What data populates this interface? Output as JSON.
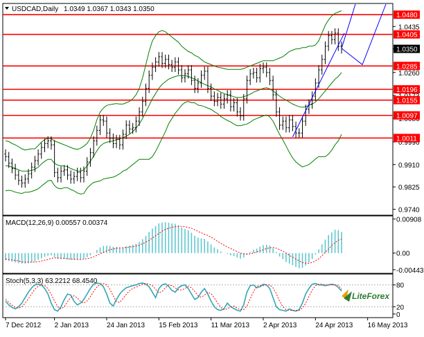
{
  "header": {
    "symbol": "USDCAD,Daily",
    "ohlc": "1.0349 1.0367 1.0343 1.0350"
  },
  "colors": {
    "background": "#ffffff",
    "frame": "#000000",
    "level_line": "#ff0000",
    "level_label_bg": "#ff0000",
    "candle": "#000000",
    "bollinger": "#008000",
    "macd_hist": "#5fc7cf",
    "macd_signal": "#ff0000",
    "stoch_main": "#2fa6b6",
    "stoch_signal": "#ff0000",
    "forecast": "#0000ff",
    "trendline": "#0000ff"
  },
  "watermark": "LiteForex",
  "chart_data": [
    {
      "type": "candlestick",
      "panel": "price",
      "title": "USDCAD,Daily",
      "ylim": [
        0.972,
        1.052
      ],
      "price_ticks": [
        "1.0435",
        "1.0350",
        "1.0260",
        "1.0173",
        "1.0086",
        "0.9996",
        "0.9910",
        "0.9825",
        "0.9740"
      ],
      "current_price": "1.0350",
      "horizontal_levels": [
        {
          "value": 1.048,
          "label": "1.0480"
        },
        {
          "value": 1.0405,
          "label": "1.0405"
        },
        {
          "value": 1.0285,
          "label": "1.0285"
        },
        {
          "value": 1.0196,
          "label": "1.0196"
        },
        {
          "value": 1.0155,
          "label": "1.0155"
        },
        {
          "value": 1.0097,
          "label": "1.0097"
        },
        {
          "value": 1.0011,
          "label": "1.0011"
        }
      ],
      "closes": [
        0.994,
        0.9915,
        0.9895,
        0.987,
        0.985,
        0.984,
        0.9855,
        0.9875,
        0.99,
        0.9925,
        0.995,
        0.9975,
        0.999,
        1.0,
        0.9985,
        0.988,
        0.986,
        0.9885,
        0.989,
        0.987,
        0.9855,
        0.9865,
        0.988,
        0.986,
        0.9885,
        0.992,
        0.9955,
        1.0,
        1.004,
        1.008,
        1.0075,
        1.003,
        1.001,
        0.999,
        1.0005,
        0.9985,
        1.0025,
        1.006,
        1.0045,
        1.005,
        1.0075,
        1.011,
        1.015,
        1.02,
        1.025,
        1.028,
        1.03,
        1.032,
        1.0295,
        1.031,
        1.029,
        1.028,
        1.03,
        1.027,
        1.024,
        1.0255,
        1.027,
        1.023,
        1.02,
        1.022,
        1.025,
        1.0265,
        1.02,
        1.017,
        1.015,
        1.0165,
        1.014,
        1.016,
        1.0175,
        1.013,
        1.0145,
        1.011,
        1.0095,
        1.016,
        1.023,
        1.0255,
        1.026,
        1.024,
        1.0275,
        1.028,
        1.026,
        1.023,
        1.0175,
        1.011,
        1.006,
        1.0075,
        1.005,
        1.008,
        1.0055,
        1.003,
        1.003,
        1.0075,
        1.012,
        1.014,
        1.017,
        1.022,
        1.027,
        1.031,
        1.036,
        1.04,
        1.0385,
        1.041,
        1.036,
        1.035
      ],
      "bollinger_upper": [
        1.0,
        0.9998,
        0.999,
        0.9985,
        0.9978,
        0.997,
        0.9965,
        0.9968,
        0.997,
        0.997,
        0.9982,
        0.9995,
        1.0005,
        1.001,
        1.0008,
        1.0,
        0.9995,
        0.999,
        0.9985,
        0.998,
        0.9975,
        0.997,
        0.9968,
        0.9972,
        0.998,
        0.999,
        1.001,
        1.004,
        1.008,
        1.011,
        1.0125,
        1.0135,
        1.0138,
        1.014,
        1.0142,
        1.014,
        1.014,
        1.0145,
        1.015,
        1.016,
        1.0175,
        1.02,
        1.024,
        1.029,
        1.034,
        1.038,
        1.04,
        1.0415,
        1.042,
        1.0415,
        1.0405,
        1.0395,
        1.0385,
        1.0375,
        1.036,
        1.035,
        1.034,
        1.0335,
        1.0325,
        1.032,
        1.031,
        1.03,
        1.0295,
        1.029,
        1.0285,
        1.028,
        1.0278,
        1.0275,
        1.0272,
        1.0272,
        1.0272,
        1.0272,
        1.0272,
        1.0275,
        1.028,
        1.0285,
        1.029,
        1.0295,
        1.03,
        1.0305,
        1.0305,
        1.0305,
        1.0305,
        1.031,
        1.0315,
        1.032,
        1.033,
        1.034,
        1.0345,
        1.035,
        1.035,
        1.0355,
        1.0355,
        1.036,
        1.036,
        1.0365,
        1.038,
        1.041,
        1.044,
        1.046,
        1.0475,
        1.0485,
        1.049,
        1.0495
      ],
      "bollinger_middle": [
        0.9905,
        0.9905,
        0.99,
        0.9895,
        0.989,
        0.9885,
        0.9885,
        0.9885,
        0.9888,
        0.9892,
        0.99,
        0.9912,
        0.9922,
        0.993,
        0.993,
        0.9915,
        0.9908,
        0.9905,
        0.9905,
        0.9902,
        0.9895,
        0.989,
        0.9885,
        0.9885,
        0.989,
        0.9905,
        0.9922,
        0.9942,
        0.9962,
        0.998,
        0.999,
        0.9995,
        0.9998,
        1.0,
        1.0005,
        1.0008,
        1.0012,
        1.0018,
        1.0025,
        1.0035,
        1.0048,
        1.0065,
        1.0085,
        1.011,
        1.0135,
        1.016,
        1.018,
        1.02,
        1.0215,
        1.0225,
        1.0235,
        1.024,
        1.0245,
        1.0248,
        1.0248,
        1.0248,
        1.0245,
        1.024,
        1.0235,
        1.0228,
        1.0222,
        1.0215,
        1.021,
        1.0205,
        1.0198,
        1.0192,
        1.0185,
        1.018,
        1.0175,
        1.0172,
        1.0168,
        1.0165,
        1.0165,
        1.0168,
        1.0172,
        1.0178,
        1.0185,
        1.019,
        1.0195,
        1.02,
        1.0202,
        1.0198,
        1.019,
        1.018,
        1.017,
        1.0162,
        1.0155,
        1.0148,
        1.014,
        1.0135,
        1.013,
        1.0128,
        1.013,
        1.0135,
        1.014,
        1.0148,
        1.016,
        1.0175,
        1.019,
        1.0205,
        1.022,
        1.0235,
        1.0245,
        1.026
      ],
      "bollinger_lower": [
        0.981,
        0.9812,
        0.981,
        0.9805,
        0.9802,
        0.98,
        0.9805,
        0.9805,
        0.9808,
        0.9812,
        0.9818,
        0.9828,
        0.9838,
        0.9848,
        0.985,
        0.983,
        0.982,
        0.9818,
        0.9822,
        0.9822,
        0.9815,
        0.981,
        0.9802,
        0.9798,
        0.98,
        0.982,
        0.9832,
        0.9842,
        0.9845,
        0.9848,
        0.9855,
        0.9858,
        0.986,
        0.9862,
        0.9868,
        0.9875,
        0.9885,
        0.989,
        0.99,
        0.991,
        0.992,
        0.993,
        0.993,
        0.993,
        0.993,
        0.994,
        0.996,
        0.9985,
        1.001,
        1.0035,
        1.0065,
        1.0085,
        1.0105,
        1.012,
        1.0136,
        1.0146,
        1.015,
        1.0145,
        1.0145,
        1.0136,
        1.0134,
        1.013,
        1.0125,
        1.012,
        1.0111,
        1.0104,
        1.0092,
        1.0085,
        1.0078,
        1.0072,
        1.0064,
        1.0058,
        1.0058,
        1.0061,
        1.0064,
        1.0071,
        1.008,
        1.0085,
        1.009,
        1.0095,
        1.0099,
        1.0091,
        1.0075,
        1.005,
        1.0025,
        1.0004,
        0.998,
        0.9956,
        0.9935,
        0.992,
        0.991,
        0.9901,
        0.9905,
        0.991,
        0.992,
        0.9931,
        0.994,
        0.994,
        0.994,
        0.995,
        0.9965,
        0.9985,
        1.0,
        1.0025
      ]
    },
    {
      "type": "bar",
      "panel": "macd",
      "title": "MACD(12,26,9) 0.00557 0.00374",
      "ylim": [
        -0.0052,
        0.0097
      ],
      "ticks": [
        "0.00908",
        "0.00",
        "-0.00443"
      ],
      "series": [
        {
          "name": "MACD",
          "values": [
            -0.0019,
            -0.0021,
            -0.0023,
            -0.0025,
            -0.0027,
            -0.0028,
            -0.0028,
            -0.0027,
            -0.0025,
            -0.0022,
            -0.0018,
            -0.0014,
            -0.001,
            -0.0007,
            -0.0006,
            -0.0011,
            -0.0015,
            -0.0016,
            -0.0016,
            -0.0017,
            -0.0018,
            -0.0018,
            -0.0017,
            -0.0017,
            -0.0015,
            -0.0011,
            -0.0006,
            0.0001,
            0.0008,
            0.0015,
            0.0019,
            0.002,
            0.0019,
            0.0017,
            0.0016,
            0.0014,
            0.0015,
            0.0018,
            0.002,
            0.0022,
            0.0025,
            0.003,
            0.0037,
            0.0046,
            0.0056,
            0.0065,
            0.0072,
            0.0079,
            0.0081,
            0.0082,
            0.0081,
            0.0079,
            0.0078,
            0.0074,
            0.0068,
            0.0064,
            0.0061,
            0.0054,
            0.0046,
            0.0041,
            0.0039,
            0.0038,
            0.0031,
            0.0023,
            0.0015,
            0.001,
            0.0004,
            0.0,
            -0.0002,
            -0.0006,
            -0.0008,
            -0.0012,
            -0.0015,
            -0.0012,
            -0.0004,
            0.0003,
            0.0009,
            0.0012,
            0.0017,
            0.0021,
            0.0022,
            0.002,
            0.0013,
            0.0003,
            -0.0009,
            -0.0016,
            -0.0024,
            -0.0028,
            -0.0032,
            -0.0037,
            -0.004,
            -0.0039,
            -0.0033,
            -0.0025,
            -0.0016,
            -0.0004,
            0.001,
            0.0023,
            0.0036,
            0.0048,
            0.0055,
            0.0062,
            0.0061,
            0.0056
          ]
        },
        {
          "name": "Signal",
          "values": [
            -0.0016,
            -0.0017,
            -0.0018,
            -0.002,
            -0.0021,
            -0.0023,
            -0.0024,
            -0.0024,
            -0.0024,
            -0.0024,
            -0.0023,
            -0.0021,
            -0.0019,
            -0.0017,
            -0.0014,
            -0.0013,
            -0.0013,
            -0.0014,
            -0.0014,
            -0.0015,
            -0.0016,
            -0.0016,
            -0.0017,
            -0.0017,
            -0.0016,
            -0.0015,
            -0.0013,
            -0.001,
            -0.0006,
            -0.0002,
            0.0002,
            0.0006,
            0.0009,
            0.0011,
            0.0013,
            0.0014,
            0.0014,
            0.0015,
            0.0016,
            0.0017,
            0.0019,
            0.0021,
            0.0025,
            0.0029,
            0.0034,
            0.004,
            0.0046,
            0.0052,
            0.0058,
            0.0063,
            0.0066,
            0.0069,
            0.007,
            0.0071,
            0.0071,
            0.007,
            0.0068,
            0.0066,
            0.0062,
            0.0058,
            0.0054,
            0.005,
            0.0047,
            0.0042,
            0.0037,
            0.0031,
            0.0026,
            0.0021,
            0.0016,
            0.0012,
            0.0008,
            0.0004,
            0.0,
            -0.0002,
            -0.0003,
            -0.0002,
            0.0,
            0.0003,
            0.0006,
            0.0009,
            0.0012,
            0.0014,
            0.0015,
            0.0013,
            0.0009,
            0.0005,
            0.0,
            -0.0006,
            -0.0011,
            -0.0016,
            -0.0021,
            -0.0025,
            -0.0027,
            -0.0027,
            -0.0025,
            -0.0021,
            -0.0015,
            -0.0007,
            0.0002,
            0.0011,
            0.002,
            0.0028,
            0.0034,
            0.0037
          ]
        }
      ]
    },
    {
      "type": "line",
      "panel": "stochastic",
      "title": "Stoch(5,3,3) 63.2212 68.4540",
      "ylim": [
        -8,
        108
      ],
      "ticks": [
        "80",
        "20",
        "0"
      ],
      "series": [
        {
          "name": "Stoch",
          "values": [
            35,
            25,
            18,
            14,
            20,
            30,
            45,
            60,
            72,
            80,
            82,
            80,
            70,
            55,
            30,
            12,
            8,
            20,
            40,
            55,
            52,
            35,
            25,
            30,
            40,
            55,
            70,
            82,
            85,
            84,
            75,
            55,
            30,
            22,
            40,
            55,
            65,
            72,
            75,
            78,
            80,
            84,
            85,
            82,
            75,
            60,
            45,
            70,
            80,
            83,
            76,
            65,
            60,
            72,
            78,
            80,
            70,
            55,
            40,
            45,
            60,
            70,
            55,
            35,
            20,
            12,
            10,
            15,
            30,
            20,
            15,
            10,
            8,
            25,
            60,
            78,
            80,
            72,
            75,
            82,
            80,
            70,
            45,
            20,
            12,
            10,
            8,
            14,
            10,
            8,
            12,
            30,
            55,
            70,
            82,
            84,
            80,
            80,
            78,
            80,
            82,
            80,
            73,
            63
          ]
        },
        {
          "name": "Signal",
          "values": [
            40,
            32,
            24,
            18,
            16,
            20,
            30,
            42,
            56,
            68,
            76,
            80,
            78,
            70,
            54,
            36,
            20,
            14,
            20,
            34,
            46,
            50,
            44,
            34,
            30,
            36,
            48,
            62,
            74,
            82,
            84,
            80,
            68,
            50,
            34,
            32,
            42,
            54,
            64,
            70,
            74,
            78,
            82,
            84,
            82,
            78,
            68,
            58,
            62,
            72,
            80,
            78,
            72,
            66,
            66,
            70,
            76,
            72,
            62,
            50,
            46,
            52,
            60,
            56,
            44,
            30,
            18,
            12,
            14,
            20,
            22,
            16,
            12,
            12,
            22,
            42,
            62,
            76,
            78,
            78,
            80,
            80,
            72,
            56,
            36,
            20,
            12,
            10,
            10,
            10,
            10,
            16,
            30,
            48,
            66,
            78,
            82,
            82,
            80,
            80,
            80,
            80,
            79,
            68
          ]
        }
      ]
    }
  ],
  "x_axis_labels": [
    "7 Dec 2012",
    "2 Jan 2013",
    "24 Jan 2013",
    "15 Feb 2013",
    "11 Mar 2013",
    "2 Apr 2013",
    "24 Apr 2013",
    "16 May 2013"
  ]
}
